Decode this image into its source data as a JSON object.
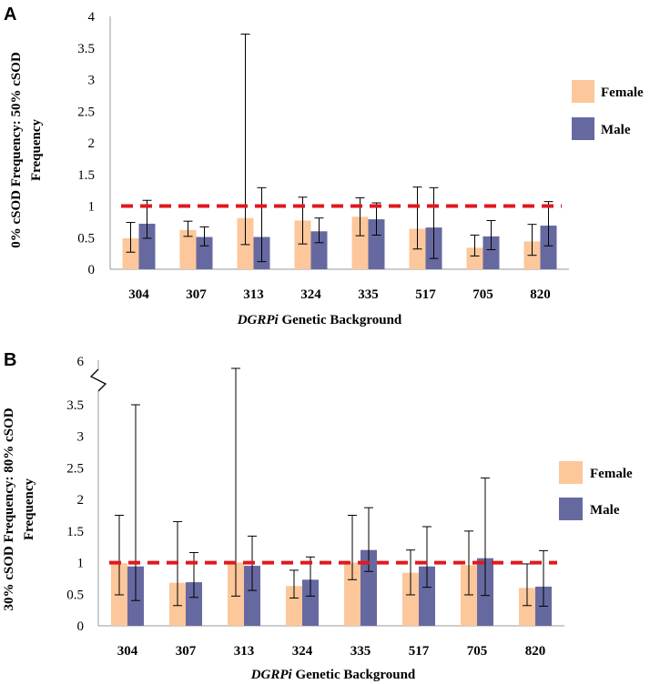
{
  "chart_data": [
    {
      "type": "bar",
      "panel_label": "A",
      "title": "",
      "xlabel_italic": "DGRPi",
      "xlabel_rest": " Genetic Background",
      "ylabel_line1": "0% cSOD Frequency: 50% cSOD",
      "ylabel_line2": "Frequency",
      "ylim": [
        0,
        4
      ],
      "yticks": [
        "0",
        "0.5",
        "1",
        "1.5",
        "2",
        "2.5",
        "3",
        "3.5",
        "4"
      ],
      "reference_line": 1,
      "categories": [
        "304",
        "307",
        "313",
        "324",
        "335",
        "517",
        "705",
        "820"
      ],
      "series": [
        {
          "name": "Female",
          "color": "#fcc79a",
          "values": [
            0.49,
            0.62,
            0.81,
            0.77,
            0.83,
            0.64,
            0.34,
            0.44
          ],
          "err_low": [
            0.27,
            0.52,
            0.39,
            0.4,
            0.53,
            0.32,
            0.21,
            0.22
          ],
          "err_high": [
            0.74,
            0.76,
            3.72,
            1.14,
            1.13,
            1.3,
            0.54,
            0.71
          ]
        },
        {
          "name": "Male",
          "color": "#6669a0",
          "values": [
            0.72,
            0.51,
            0.51,
            0.6,
            0.79,
            0.66,
            0.52,
            0.69
          ],
          "err_low": [
            0.49,
            0.37,
            0.12,
            0.42,
            0.54,
            0.17,
            0.31,
            0.37
          ],
          "err_high": [
            1.09,
            0.67,
            1.29,
            0.81,
            1.05,
            1.29,
            0.77,
            1.07
          ]
        }
      ],
      "legend": [
        {
          "label": "Female",
          "color": "#fcc79a"
        },
        {
          "label": "Male",
          "color": "#6669a0"
        }
      ]
    },
    {
      "type": "bar",
      "panel_label": "B",
      "title": "",
      "xlabel_italic": "DGRPi",
      "xlabel_rest": " Genetic Background",
      "ylabel_line1": "30% cSOD Frequency: 80% cSOD",
      "ylabel_line2": "Frequency",
      "ylim": [
        0,
        3.5
      ],
      "axis_break_label": "6",
      "axis_break": true,
      "yticks": [
        "0",
        "0.5",
        "1",
        "1.5",
        "2",
        "2.5",
        "3",
        "3.5"
      ],
      "reference_line": 1,
      "categories": [
        "304",
        "307",
        "313",
        "324",
        "335",
        "517",
        "705",
        "820"
      ],
      "series": [
        {
          "name": "Female",
          "color": "#fcc79a",
          "values": [
            0.99,
            0.68,
            1.0,
            0.63,
            1.0,
            0.84,
            0.96,
            0.6
          ],
          "err_low": [
            0.49,
            0.32,
            0.47,
            0.44,
            0.73,
            0.49,
            0.49,
            0.32
          ],
          "err_high": [
            1.75,
            1.65,
            5.9,
            0.88,
            1.75,
            1.2,
            1.5,
            0.98
          ]
        },
        {
          "name": "Male",
          "color": "#6669a0",
          "values": [
            0.94,
            0.69,
            0.95,
            0.73,
            1.2,
            0.94,
            1.07,
            0.62
          ],
          "err_low": [
            0.4,
            0.45,
            0.56,
            0.47,
            0.86,
            0.61,
            0.48,
            0.31
          ],
          "err_high": [
            3.5,
            1.16,
            1.42,
            1.09,
            1.87,
            1.57,
            2.34,
            1.19
          ]
        }
      ],
      "legend": [
        {
          "label": "Female",
          "color": "#fcc79a"
        },
        {
          "label": "Male",
          "color": "#6669a0"
        }
      ]
    }
  ]
}
